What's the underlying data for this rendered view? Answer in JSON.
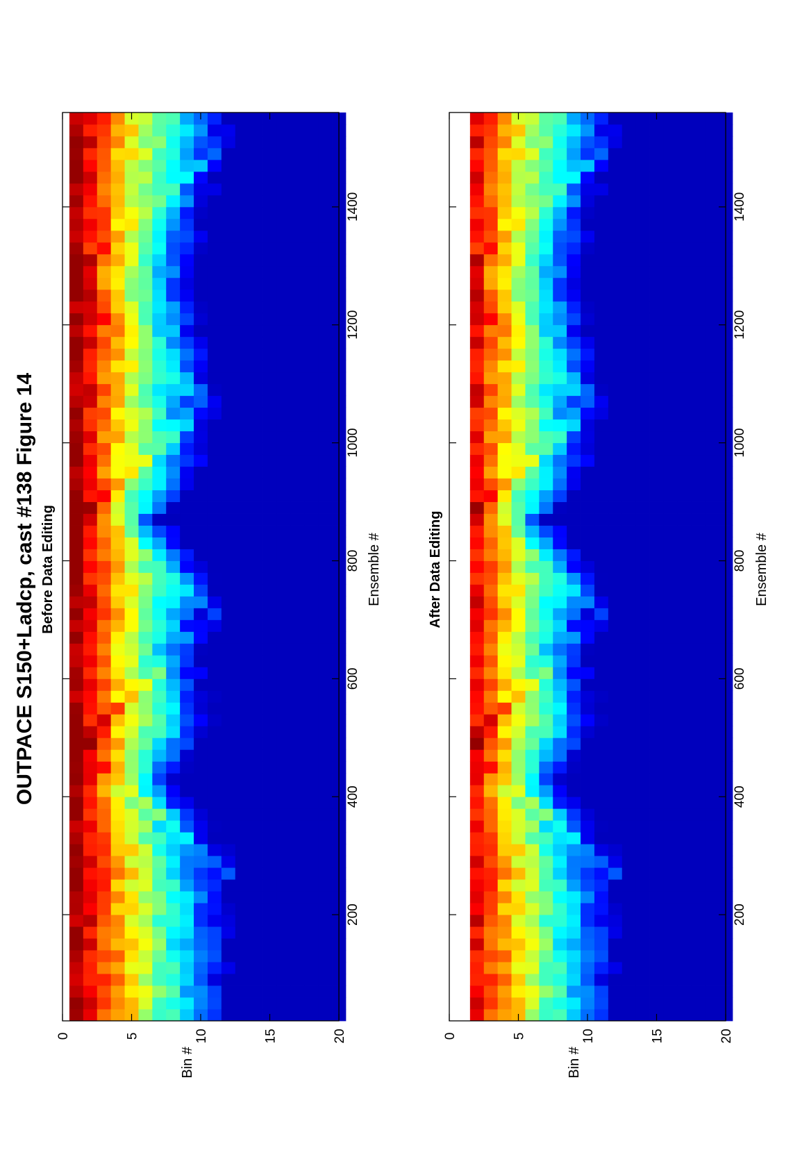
{
  "figure": {
    "title": "OUTPACE S150+Ladcp, cast #138  Figure 14"
  },
  "chart_data": [
    {
      "type": "heatmap",
      "title": "Before Data Editing",
      "xlabel": "Ensemble #",
      "ylabel": "Bin #",
      "xlim": [
        20,
        1560
      ],
      "ylim": [
        0,
        20
      ],
      "x_ticks": [
        200,
        400,
        600,
        800,
        1000,
        1200,
        1400
      ],
      "y_ticks": [
        0,
        5,
        10,
        15,
        20
      ],
      "x_tick_labels": [
        "200",
        "400",
        "600",
        "800",
        "1000",
        "1200",
        "1400"
      ],
      "y_tick_labels": [
        "0",
        "5",
        "10",
        "15",
        "20"
      ],
      "bins": 20,
      "colormap": "jet",
      "first_bin_removed": false,
      "ridges": [
        [
          500,
          1
        ],
        [
          900,
          1
        ],
        [
          1280,
          1
        ]
      ],
      "valleys": [
        [
          870,
          10
        ],
        [
          430,
          16
        ],
        [
          1280,
          19
        ]
      ]
    },
    {
      "type": "heatmap",
      "title": "After Data Editing",
      "xlabel": "Ensemble #",
      "ylabel": "Bin #",
      "xlim": [
        20,
        1560
      ],
      "ylim": [
        0,
        20
      ],
      "x_ticks": [
        200,
        400,
        600,
        800,
        1000,
        1200,
        1400
      ],
      "y_ticks": [
        0,
        5,
        10,
        15,
        20
      ],
      "x_tick_labels": [
        "200",
        "400",
        "600",
        "800",
        "1000",
        "1200",
        "1400"
      ],
      "y_tick_labels": [
        "0",
        "5",
        "10",
        "15",
        "20"
      ],
      "bins": 20,
      "colormap": "jet",
      "first_bin_removed": true,
      "ridges": [
        [
          500,
          1
        ],
        [
          900,
          1
        ],
        [
          1280,
          1
        ]
      ],
      "valleys": [
        [
          870,
          10
        ],
        [
          430,
          16
        ],
        [
          1280,
          19
        ]
      ]
    }
  ]
}
